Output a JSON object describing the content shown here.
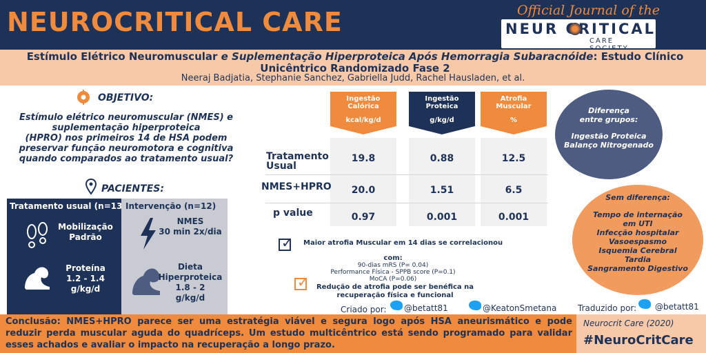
{
  "header": {
    "brand": "NEUROCRITICAL CARE",
    "journal_tag": "Official Journal of the",
    "society_line1": "NEUR  CRITICAL",
    "society_line2": "CARE SOCIETY"
  },
  "title": {
    "part1": "Estímulo Elétrico Neuromuscular",
    "part2": " e ",
    "part3": "Suplementação Hiperproteica Após Hemorragia Subaracnóide",
    "part4": ": Estudo Clínico Unicêntrico Randomizado Fase 2",
    "authors": "Neeraj Badjatia, Stephanie Sanchez, Gabriella Judd, Rachel Hausladen, et al."
  },
  "objective": {
    "heading": "OBJETIVO:",
    "line1": "Estímulo elétrico neuromuscular  (NMES) e",
    "line2": "suplementação hiperproteica",
    "line3": "(HPRO) nos primeiros 14 de HSA podem",
    "line4": "preservar função neuromotora e cognitiva",
    "line5": "quando comparados ao tratamento usual?"
  },
  "patients": {
    "heading": "PACIENTES:",
    "usual_header": "Tratamento usual (n=13)",
    "usual_item1_line1": "Mobilização",
    "usual_item1_line2": "Padrão",
    "usual_item2_line1": "Proteína",
    "usual_item2_line2": "1.2 - 1.4",
    "usual_item2_line3": "g/kg/d",
    "int_header": "Intervenção (n=12)",
    "int_item1_line1": "NMES",
    "int_item1_line2": "30 min 2x/dia",
    "int_item2_line1": "Dieta",
    "int_item2_line2": "Hiperproteica",
    "int_item2_line3": "1.8 - 2",
    "int_item2_line4": "g/kg/d"
  },
  "results": {
    "col1_line1": "Ingestão",
    "col1_line2": "Calórica",
    "col1_unit": "kcal/kg/d",
    "col2_line1": "Ingestão",
    "col2_line2": "Proteica",
    "col2_unit": "g/kg/d",
    "col3_line1": "Atrofia",
    "col3_line2": "Muscular",
    "col3_unit": "%",
    "row1_line1": "Tratamento",
    "row1_line2": "Usual",
    "row2": "NMES+HPRO",
    "row3": "p value",
    "r1c1": "19.8",
    "r1c2": "0.88",
    "r1c3": "12.5",
    "r2c1": "20.0",
    "r2c2": "1.51",
    "r2c3": "6.5",
    "r3c1": "0.97",
    "r3c2": "0.001",
    "r3c3": "0.001"
  },
  "differences": {
    "heading_line1": "Diferença",
    "heading_line2": "entre grupos:",
    "item1": "Ingestão Proteica",
    "item2": "Balanço Nitrogenado"
  },
  "no_difference": {
    "heading": "Sem diferença:",
    "item1_line1": "Tempo de internação",
    "item1_line2": "em UTI",
    "item2": "Infecção hospitalar",
    "item3": "Vasoespasmo",
    "item4_line1": "Isquemia Cerebral",
    "item4_line2": "Tardia",
    "item5": "Sangramento Digestivo"
  },
  "findings": {
    "f1": "Maior atrofia Muscular em 14 dias se correlacionou",
    "f1_com": "com:",
    "f1_sub1": "90-dias mRS (P= 0.04)",
    "f1_sub2": "Performance Física - SPPB score (P=0.1)",
    "f1_sub3": "MoCA (P=0.06)",
    "f2_line1": "Redução de atrofia pode ser benéfica na",
    "f2_line2": "recuperação física e funcional"
  },
  "credits": {
    "created_by": "Criado por:",
    "handle1": "@betatt81",
    "handle2": "@KeatonSmetana",
    "translated_by": "Traduzido por:",
    "handle3": "@betatt81"
  },
  "conclusion": {
    "text": "Conclusão: NMES+HPRO parece ser uma estratégia viável e segura logo após HSA aneurismático e pode reduzir perda muscular aguda do quadríceps. Um estudo multicêntrico está sendo programado para validar esses achados e avaliar o impacto na recuperação a longo prazo.",
    "citation": "Neurocrit Care (2020)",
    "hashtag": "#NeuroCritCare"
  },
  "colors": {
    "navy": "#1e3257",
    "orange": "#f08a3c",
    "peach": "#f7c9a8",
    "grey": "#c8ccd2",
    "slate": "#4d5c80"
  }
}
